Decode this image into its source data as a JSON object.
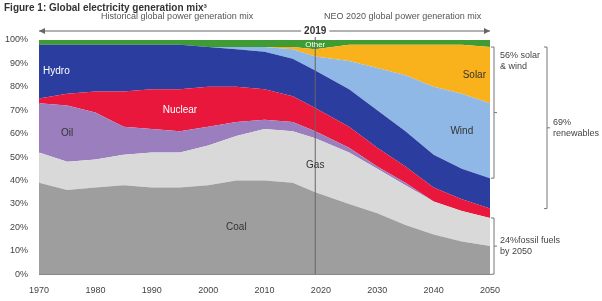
{
  "chart_data": {
    "type": "area",
    "title": "Figure 1: Global electricity generation mix³",
    "x": [
      1970,
      1975,
      1980,
      1985,
      1990,
      1995,
      2000,
      2005,
      2010,
      2015,
      2019,
      2025,
      2030,
      2035,
      2040,
      2045,
      2050
    ],
    "series": [
      {
        "name": "Coal",
        "color": "#9e9e9e",
        "values": [
          39,
          36,
          37,
          38,
          37,
          37,
          38,
          40,
          40,
          39,
          35,
          30,
          26,
          21,
          17,
          14,
          12
        ]
      },
      {
        "name": "Gas",
        "color": "#d9d9d9",
        "values": [
          13,
          12,
          12,
          13,
          15,
          15,
          17,
          19,
          22,
          22,
          23,
          22,
          19,
          17,
          14,
          13,
          12
        ]
      },
      {
        "name": "Oil",
        "color": "#9a7ebd",
        "values": [
          21,
          24,
          20,
          12,
          10,
          9,
          8,
          6,
          4,
          4,
          3,
          2,
          1,
          1,
          0,
          0,
          0
        ]
      },
      {
        "name": "Nuclear",
        "color": "#e8173b",
        "values": [
          2,
          5,
          9,
          15,
          17,
          18,
          17,
          15,
          13,
          11,
          10,
          9,
          8,
          7,
          6,
          5,
          4
        ]
      },
      {
        "name": "Hydro",
        "color": "#2b3ea0",
        "values": [
          23,
          21,
          20,
          20,
          19,
          19,
          17,
          16,
          16,
          16,
          16,
          16,
          16,
          15,
          14,
          13,
          13
        ]
      },
      {
        "name": "Wind",
        "color": "#8fb8e6",
        "values": [
          0,
          0,
          0,
          0,
          0,
          0,
          0,
          1,
          2,
          4,
          6,
          12,
          18,
          24,
          29,
          32,
          32
        ]
      },
      {
        "name": "Solar",
        "color": "#f9b21b",
        "values": [
          0,
          0,
          0,
          0,
          0,
          0,
          0,
          0,
          0,
          1,
          3,
          7,
          10,
          13,
          18,
          21,
          24
        ]
      },
      {
        "name": "Other",
        "color": "#3f9c35",
        "values": [
          2,
          2,
          2,
          2,
          2,
          2,
          3,
          3,
          3,
          3,
          4,
          2,
          2,
          2,
          2,
          2,
          3
        ]
      }
    ],
    "xlim": [
      1970,
      2050
    ],
    "xticks": [
      1970,
      1980,
      1990,
      2000,
      2010,
      2020,
      2030,
      2040,
      2050
    ],
    "ylim": [
      0,
      100
    ],
    "yticks": [
      {
        "value": 0,
        "label": "0%"
      },
      {
        "value": 10,
        "label": "10%"
      },
      {
        "value": 20,
        "label": "20%"
      },
      {
        "value": 30,
        "label": "30%"
      },
      {
        "value": 40,
        "label": "40%"
      },
      {
        "value": 50,
        "label": "50%"
      },
      {
        "value": 60,
        "label": "60%"
      },
      {
        "value": 70,
        "label": "70%"
      },
      {
        "value": 80,
        "label": "80%"
      },
      {
        "value": 90,
        "label": "90%"
      },
      {
        "value": 100,
        "label": "100%"
      }
    ],
    "stacked": true,
    "grid": false,
    "annotations": [
      {
        "text": "Historical global power generation mix"
      },
      {
        "text": "2019",
        "x": 2019
      },
      {
        "text": "NEO 2020 global power generation mix"
      },
      {
        "text": "56% solar & wind"
      },
      {
        "text": "69% renewables"
      },
      {
        "text": "24%fossil fuels by 2050"
      }
    ]
  }
}
